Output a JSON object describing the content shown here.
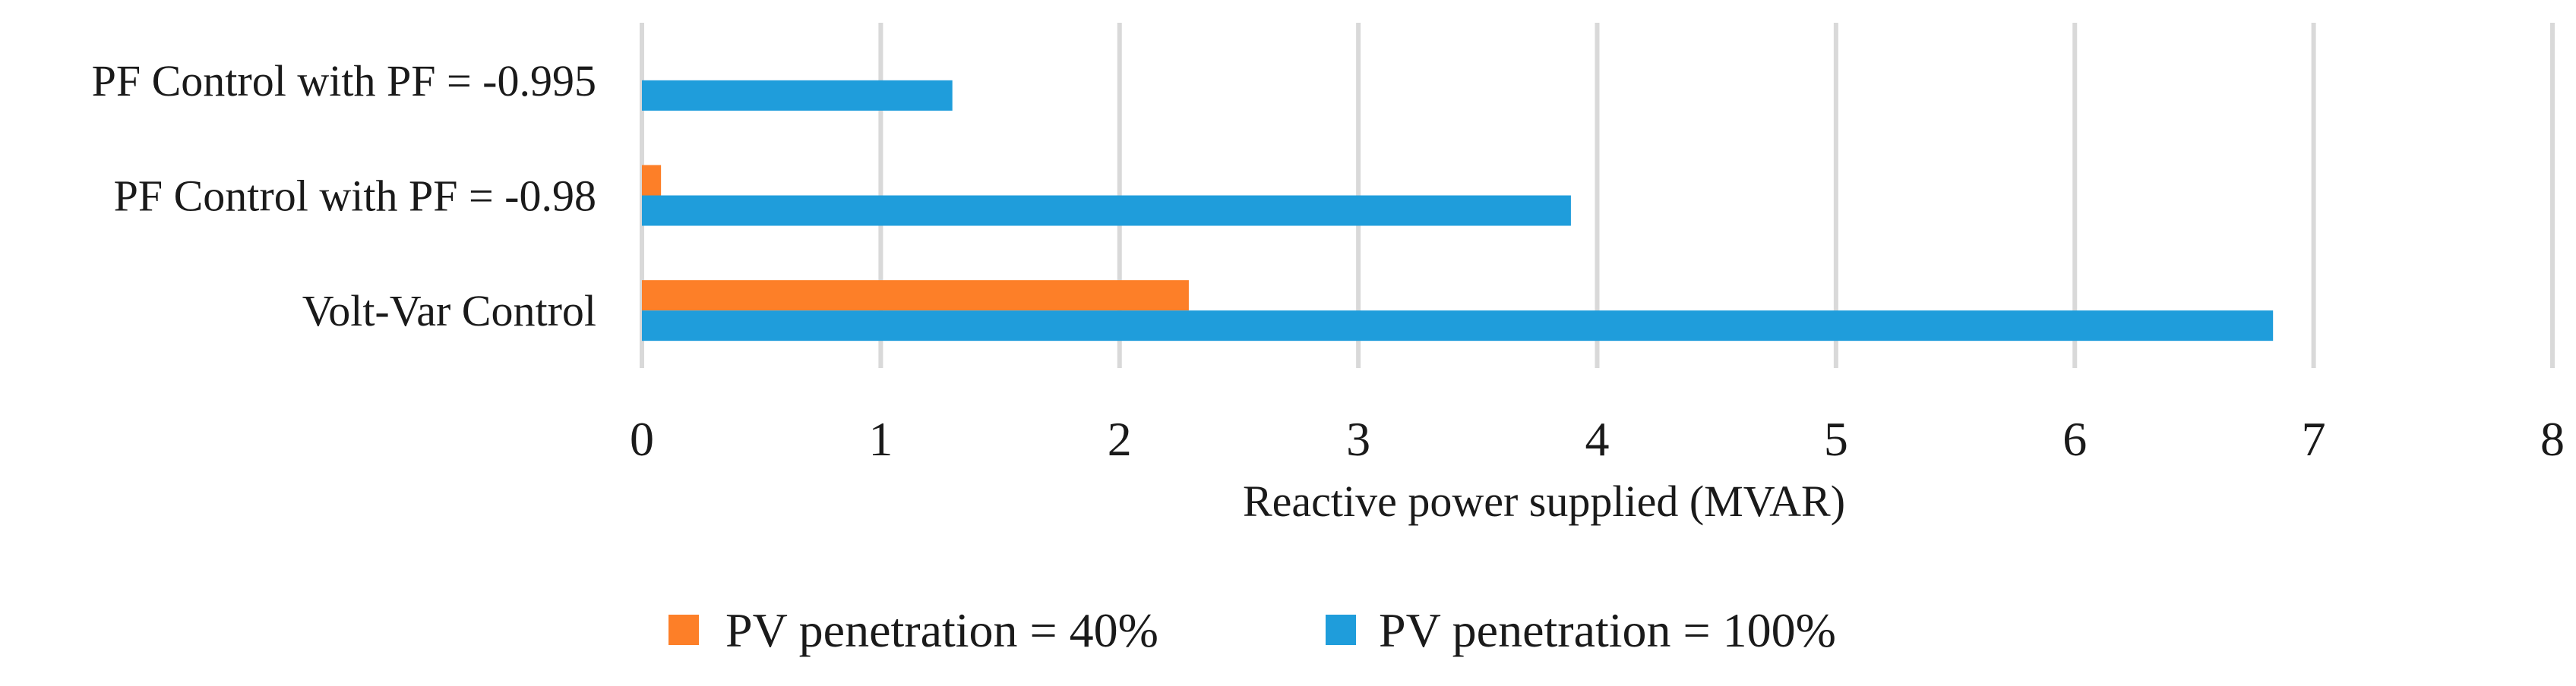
{
  "chart_data": {
    "type": "bar",
    "orientation": "horizontal",
    "categories": [
      "Volt-Var Control",
      "PF Control with PF = -0.98",
      "PF Control with PF = -0.995"
    ],
    "series": [
      {
        "name": "PV penetration = 40%",
        "values": [
          2.29,
          0.08,
          0
        ],
        "color": "#FD7F28"
      },
      {
        "name": "PV penetration = 100%",
        "values": [
          6.83,
          3.89,
          1.3
        ],
        "color": "#1F9DDB"
      }
    ],
    "title": "",
    "xlabel": "Reactive power supplied (MVAR)",
    "ylabel": "",
    "xlim": [
      0,
      8
    ],
    "xticks": [
      "0",
      "1",
      "2",
      "3",
      "4",
      "5",
      "6",
      "7",
      "8"
    ],
    "grid": true,
    "legend_position": "bottom"
  }
}
